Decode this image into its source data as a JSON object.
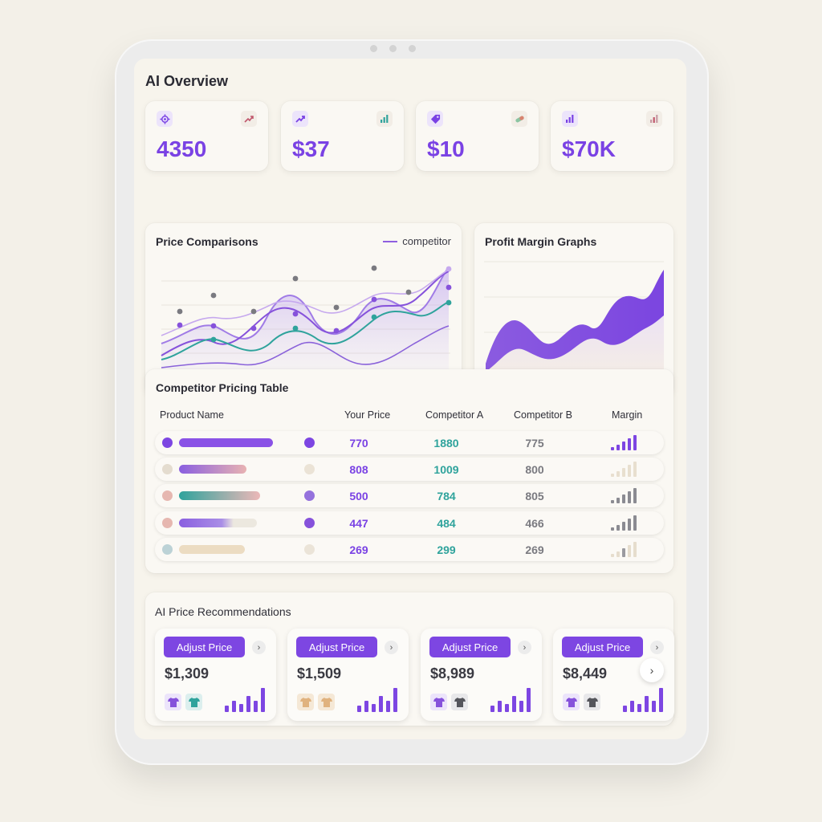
{
  "header": {
    "title": "AI Overview"
  },
  "kpis": [
    {
      "icon": "gear-icon",
      "badge": "trend-up-icon",
      "value": "4350"
    },
    {
      "icon": "trend-up-icon",
      "badge": "bar-chart-icon",
      "value": "$37"
    },
    {
      "icon": "tag-icon",
      "badge": "pill-icon",
      "value": "$10"
    },
    {
      "icon": "bar-chart-icon",
      "badge": "bar-chart-icon",
      "value": "$70K"
    }
  ],
  "price_comparisons": {
    "title": "Price Comparisons",
    "legend_label": "competitor"
  },
  "profit_margin": {
    "title": "Profit Margin Graphs"
  },
  "table": {
    "title": "Competitor Pricing Table",
    "columns": {
      "product": "Product Name",
      "your_price": "Your Price",
      "competitor_a": "Competitor A",
      "competitor_b": "Competitor B",
      "margin": "Margin"
    },
    "rows": [
      {
        "your_price": "770",
        "competitor_a": "1880",
        "competitor_b": "775"
      },
      {
        "your_price": "808",
        "competitor_a": "1009",
        "competitor_b": "800"
      },
      {
        "your_price": "500",
        "competitor_a": "784",
        "competitor_b": "805"
      },
      {
        "your_price": "447",
        "competitor_a": "484",
        "competitor_b": "466"
      },
      {
        "your_price": "269",
        "competitor_a": "299",
        "competitor_b": "269"
      }
    ]
  },
  "recommendations": {
    "title": "AI Price Recommendations",
    "items": [
      {
        "button": "Adjust Price",
        "price": "$1,309"
      },
      {
        "button": "Adjust Price",
        "price": "$1,509"
      },
      {
        "button": "Adjust Price",
        "price": "$8,989"
      },
      {
        "button": "Adjust Price",
        "price": "$8,449"
      }
    ]
  },
  "colors": {
    "accent": "#7a42e4",
    "teal": "#2fa39c",
    "gray": "#7a7a80"
  }
}
